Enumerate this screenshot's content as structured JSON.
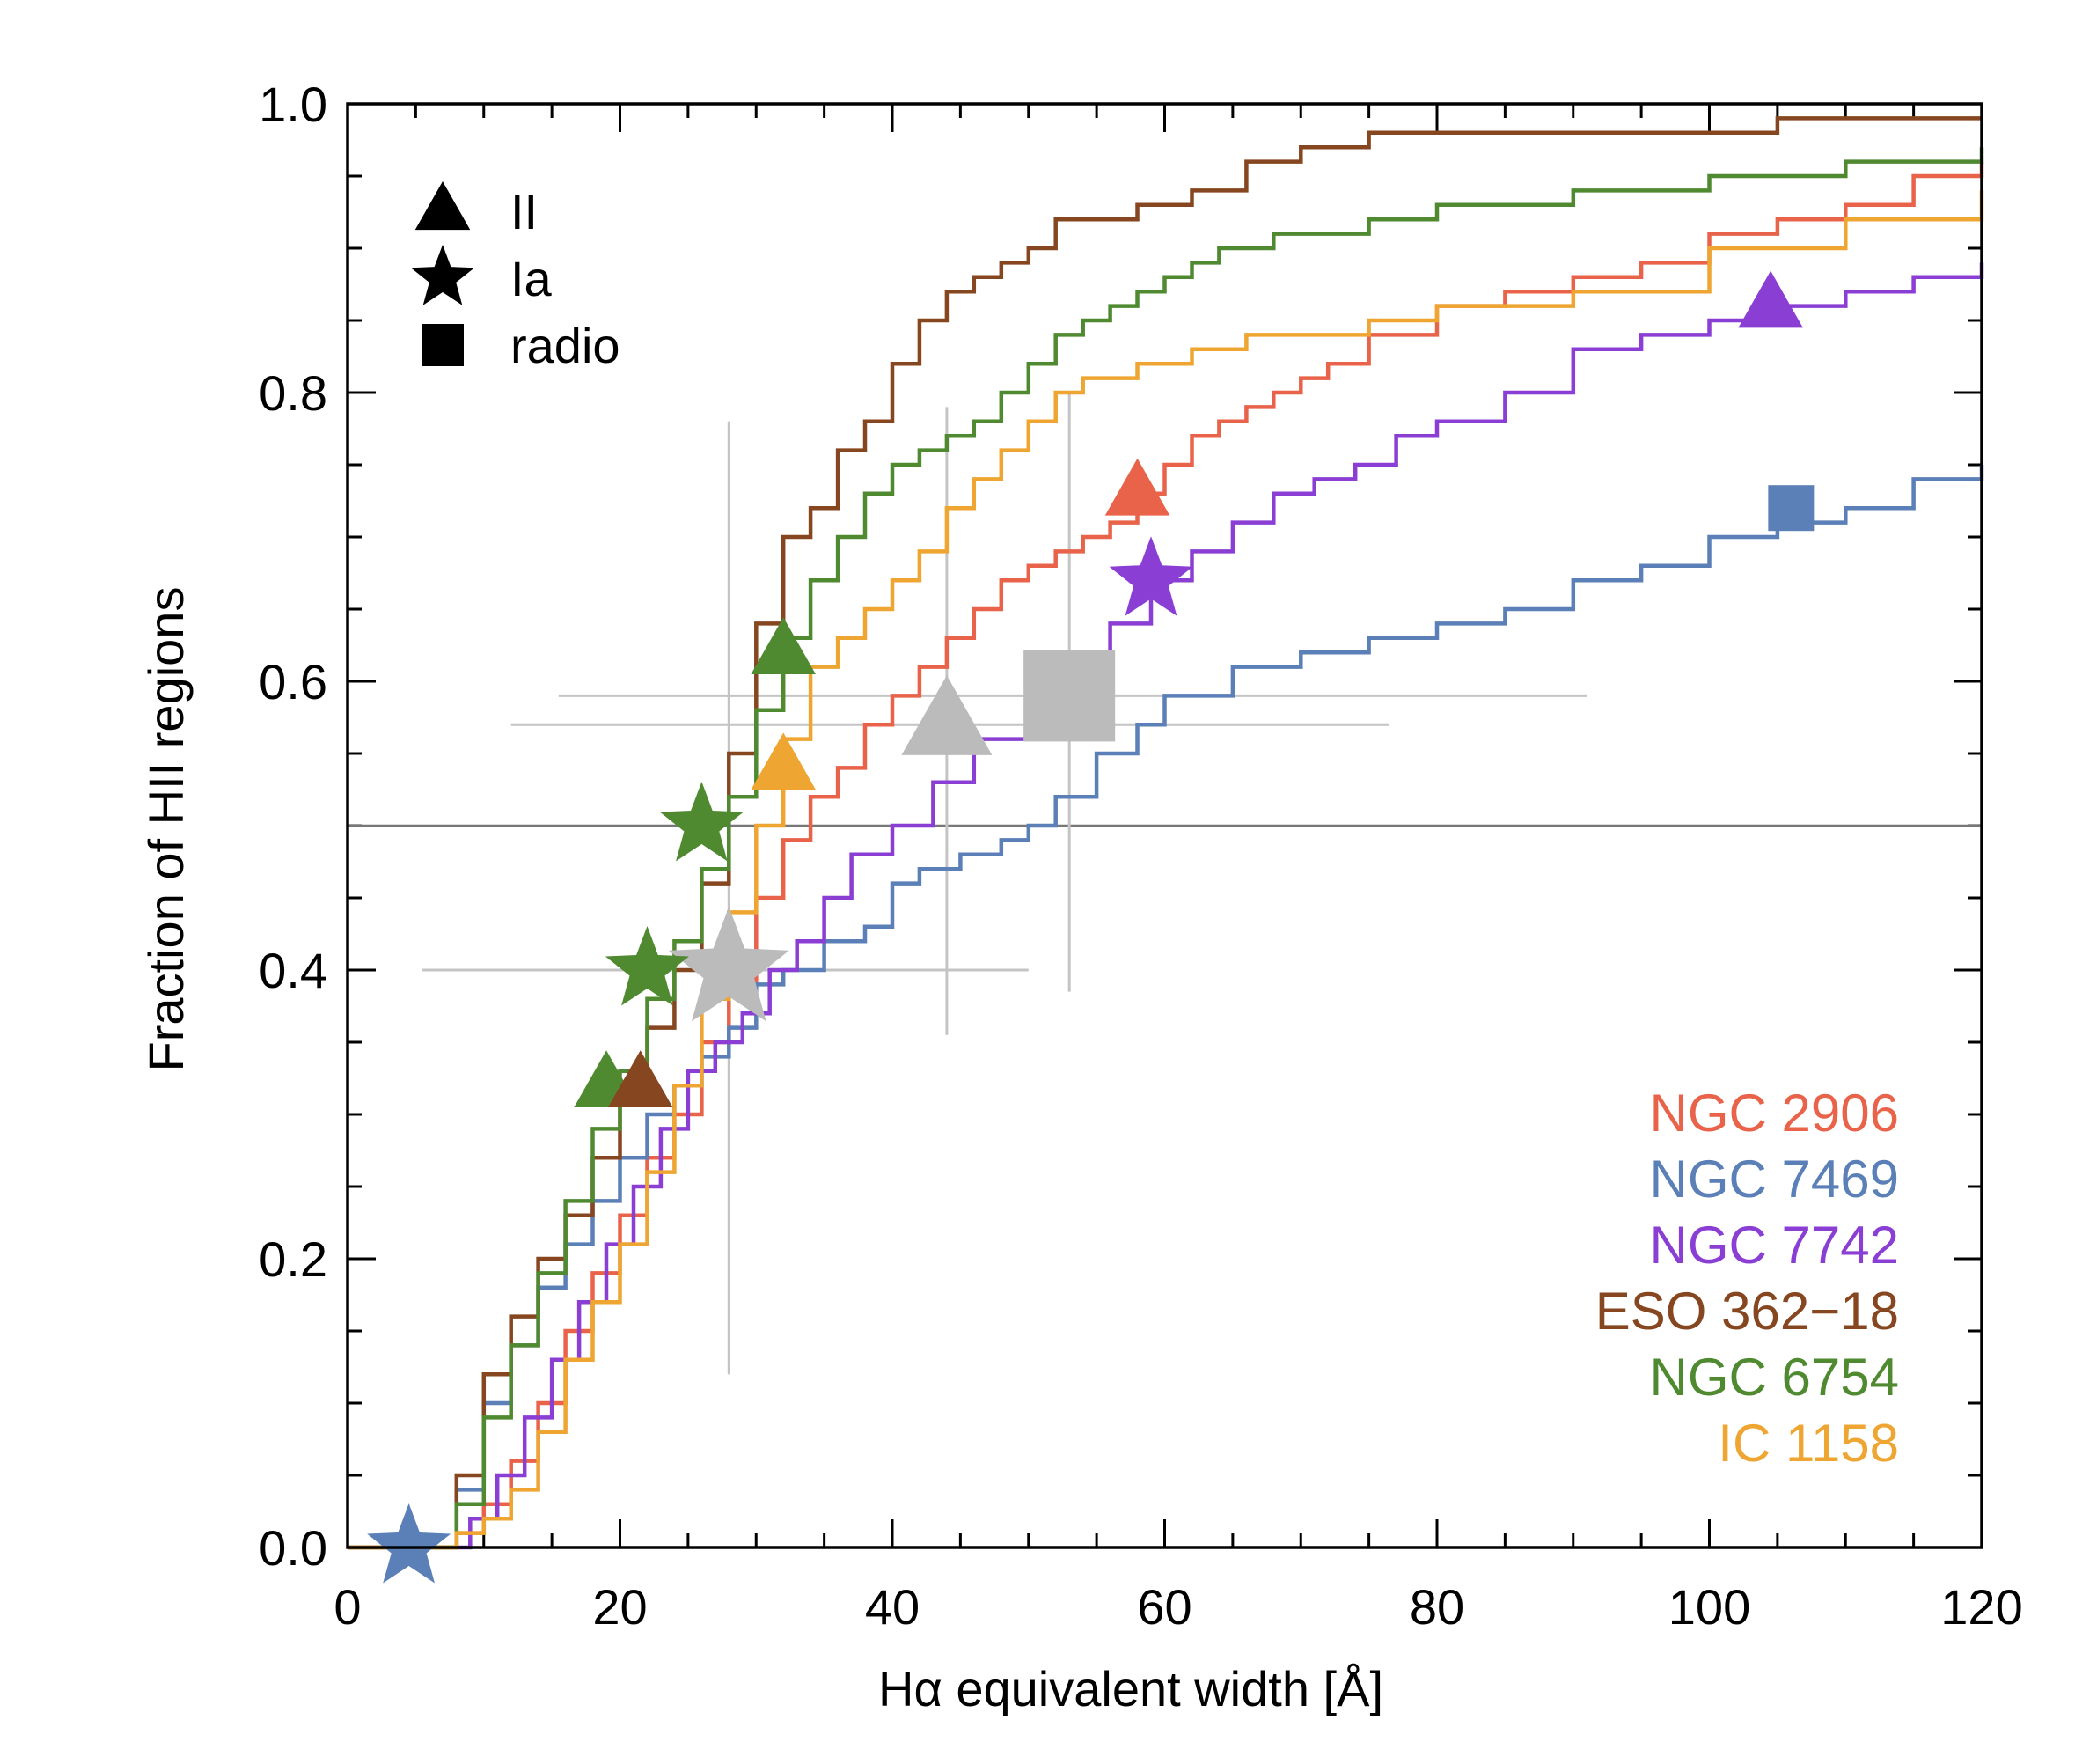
{
  "chart_data": {
    "type": "line",
    "title": "",
    "xlabel": "Hα equivalent width [Å]",
    "ylabel": "Fraction of HII regions",
    "xlim": [
      0,
      120
    ],
    "ylim": [
      0,
      1.0
    ],
    "x_ticks": [
      0,
      20,
      40,
      60,
      80,
      100,
      120
    ],
    "x_tick_labels": [
      "0",
      "20",
      "40",
      "60",
      "80",
      "100",
      "120"
    ],
    "y_ticks": [
      0.0,
      0.2,
      0.4,
      0.6,
      0.8,
      1.0
    ],
    "y_tick_labels": [
      "0.0",
      "0.2",
      "0.4",
      "0.6",
      "0.8",
      "1.0"
    ],
    "x_minor_step": 5,
    "y_minor_step": 0.05,
    "reference_line_y": 0.5,
    "grid": false,
    "legend_placement": "bottom-right",
    "series": [
      {
        "name": "NGC 2906",
        "color": "#e8634a",
        "x": [
          0,
          6,
          8,
          10,
          12,
          14,
          16,
          18,
          20,
          22,
          24,
          26,
          28,
          30,
          32,
          34,
          36,
          38,
          40,
          42,
          44,
          46,
          48,
          50,
          52,
          54,
          56,
          58,
          60,
          62,
          64,
          66,
          68,
          70,
          72,
          75,
          80,
          85,
          90,
          95,
          100,
          105,
          110,
          115,
          120
        ],
        "y": [
          0,
          0,
          0.01,
          0.03,
          0.06,
          0.1,
          0.15,
          0.19,
          0.23,
          0.27,
          0.3,
          0.35,
          0.39,
          0.45,
          0.49,
          0.52,
          0.54,
          0.57,
          0.59,
          0.61,
          0.63,
          0.65,
          0.67,
          0.68,
          0.69,
          0.7,
          0.71,
          0.73,
          0.75,
          0.77,
          0.78,
          0.79,
          0.8,
          0.81,
          0.82,
          0.84,
          0.86,
          0.87,
          0.88,
          0.89,
          0.91,
          0.92,
          0.93,
          0.95,
          0.96
        ]
      },
      {
        "name": "NGC 7469",
        "color": "#5b7fb7",
        "x": [
          0,
          6,
          8,
          10,
          12,
          14,
          16,
          18,
          20,
          22,
          24,
          26,
          28,
          30,
          32,
          35,
          38,
          40,
          42,
          45,
          48,
          50,
          52,
          55,
          58,
          60,
          65,
          70,
          75,
          80,
          85,
          90,
          95,
          100,
          105,
          110,
          115,
          120
        ],
        "y": [
          0,
          0,
          0.04,
          0.1,
          0.14,
          0.18,
          0.21,
          0.24,
          0.27,
          0.3,
          0.32,
          0.34,
          0.36,
          0.39,
          0.4,
          0.42,
          0.43,
          0.46,
          0.47,
          0.48,
          0.49,
          0.5,
          0.52,
          0.55,
          0.57,
          0.59,
          0.61,
          0.62,
          0.63,
          0.64,
          0.65,
          0.67,
          0.68,
          0.7,
          0.71,
          0.72,
          0.74,
          0.75
        ]
      },
      {
        "name": "NGC 7742",
        "color": "#8a3ed4",
        "x": [
          0,
          7,
          9,
          11,
          13,
          15,
          17,
          19,
          21,
          23,
          25,
          27,
          29,
          31,
          33,
          35,
          37,
          40,
          43,
          46,
          50,
          53,
          56,
          59,
          62,
          65,
          68,
          71,
          74,
          77,
          80,
          85,
          90,
          95,
          100,
          105,
          110,
          115,
          120
        ],
        "y": [
          0,
          0,
          0.02,
          0.05,
          0.09,
          0.13,
          0.17,
          0.21,
          0.25,
          0.29,
          0.33,
          0.35,
          0.37,
          0.4,
          0.42,
          0.45,
          0.48,
          0.5,
          0.53,
          0.56,
          0.59,
          0.62,
          0.64,
          0.67,
          0.69,
          0.71,
          0.73,
          0.74,
          0.75,
          0.77,
          0.78,
          0.8,
          0.83,
          0.84,
          0.85,
          0.86,
          0.87,
          0.88,
          0.89
        ]
      },
      {
        "name": "ESO 362−18",
        "color": "#86461f",
        "x": [
          0,
          6,
          8,
          10,
          12,
          14,
          16,
          18,
          20,
          22,
          24,
          26,
          28,
          30,
          32,
          34,
          36,
          38,
          40,
          42,
          44,
          46,
          48,
          50,
          52,
          54,
          58,
          62,
          66,
          70,
          75,
          80,
          90,
          100,
          105,
          110,
          120
        ],
        "y": [
          0,
          0,
          0.05,
          0.12,
          0.16,
          0.2,
          0.23,
          0.27,
          0.31,
          0.36,
          0.4,
          0.46,
          0.55,
          0.64,
          0.7,
          0.72,
          0.76,
          0.78,
          0.82,
          0.85,
          0.87,
          0.88,
          0.89,
          0.9,
          0.92,
          0.92,
          0.93,
          0.94,
          0.96,
          0.97,
          0.98,
          0.98,
          0.98,
          0.98,
          0.99,
          0.99,
          0.99
        ]
      },
      {
        "name": "NGC 6754",
        "color": "#4f8a30",
        "x": [
          0,
          6,
          8,
          10,
          12,
          14,
          16,
          18,
          20,
          22,
          24,
          26,
          28,
          30,
          32,
          34,
          36,
          38,
          40,
          42,
          44,
          46,
          48,
          50,
          52,
          54,
          56,
          58,
          60,
          62,
          64,
          66,
          68,
          70,
          75,
          80,
          90,
          100,
          110,
          120
        ],
        "y": [
          0,
          0,
          0.03,
          0.09,
          0.14,
          0.19,
          0.24,
          0.29,
          0.33,
          0.38,
          0.42,
          0.47,
          0.52,
          0.58,
          0.63,
          0.67,
          0.7,
          0.73,
          0.75,
          0.76,
          0.77,
          0.78,
          0.8,
          0.82,
          0.84,
          0.85,
          0.86,
          0.87,
          0.88,
          0.89,
          0.9,
          0.9,
          0.91,
          0.91,
          0.92,
          0.93,
          0.94,
          0.95,
          0.96,
          0.97
        ]
      },
      {
        "name": "IC 1158",
        "color": "#eea531",
        "x": [
          0,
          6,
          8,
          10,
          12,
          14,
          16,
          18,
          20,
          22,
          24,
          26,
          28,
          30,
          32,
          34,
          36,
          38,
          40,
          42,
          44,
          46,
          48,
          50,
          52,
          54,
          56,
          58,
          60,
          62,
          64,
          66,
          68,
          70,
          75,
          80,
          90,
          100,
          110,
          120
        ],
        "y": [
          0,
          0,
          0.01,
          0.02,
          0.04,
          0.08,
          0.13,
          0.17,
          0.21,
          0.26,
          0.32,
          0.38,
          0.44,
          0.5,
          0.56,
          0.61,
          0.63,
          0.65,
          0.67,
          0.69,
          0.72,
          0.74,
          0.76,
          0.78,
          0.8,
          0.81,
          0.81,
          0.82,
          0.82,
          0.83,
          0.83,
          0.84,
          0.84,
          0.84,
          0.85,
          0.86,
          0.87,
          0.9,
          0.92,
          0.94
        ]
      }
    ],
    "markers": [
      {
        "symbol": "star",
        "color": "#5b7fb7",
        "x": 4.5,
        "y": 0.0
      },
      {
        "symbol": "triangle",
        "color": "#4f8a30",
        "x": 19,
        "y": 0.32
      },
      {
        "symbol": "triangle",
        "color": "#86461f",
        "x": 21.5,
        "y": 0.32
      },
      {
        "symbol": "star",
        "color": "#4f8a30",
        "x": 22,
        "y": 0.4
      },
      {
        "symbol": "star",
        "color": "#4f8a30",
        "x": 26,
        "y": 0.5
      },
      {
        "symbol": "triangle",
        "color": "#4f8a30",
        "x": 32,
        "y": 0.62
      },
      {
        "symbol": "triangle",
        "color": "#eea531",
        "x": 32,
        "y": 0.54
      },
      {
        "symbol": "triangle",
        "color": "#e8634a",
        "x": 58,
        "y": 0.73
      },
      {
        "symbol": "star",
        "color": "#8a3ed4",
        "x": 59,
        "y": 0.67
      },
      {
        "symbol": "triangle",
        "color": "#8a3ed4",
        "x": 104.5,
        "y": 0.86
      },
      {
        "symbol": "square",
        "color": "#5b7fb7",
        "x": 106,
        "y": 0.72
      }
    ],
    "summary_markers": [
      {
        "symbol": "star",
        "color": "#bbbbbb",
        "x": 28,
        "y": 0.4,
        "xerr": [
          5.5,
          50
        ],
        "yerr": [
          0.12,
          0.78
        ]
      },
      {
        "symbol": "triangle",
        "color": "#bbbbbb",
        "x": 44,
        "y": 0.57,
        "xerr": [
          12,
          76.5
        ],
        "yerr": [
          0.355,
          0.79
        ]
      },
      {
        "symbol": "square",
        "color": "#bbbbbb",
        "x": 53,
        "y": 0.59,
        "xerr": [
          15.5,
          91
        ],
        "yerr": [
          0.385,
          0.8
        ]
      }
    ],
    "symbol_legend": [
      {
        "symbol": "triangle",
        "label": "II"
      },
      {
        "symbol": "star",
        "label": "Ia"
      },
      {
        "symbol": "square",
        "label": "radio"
      }
    ]
  }
}
